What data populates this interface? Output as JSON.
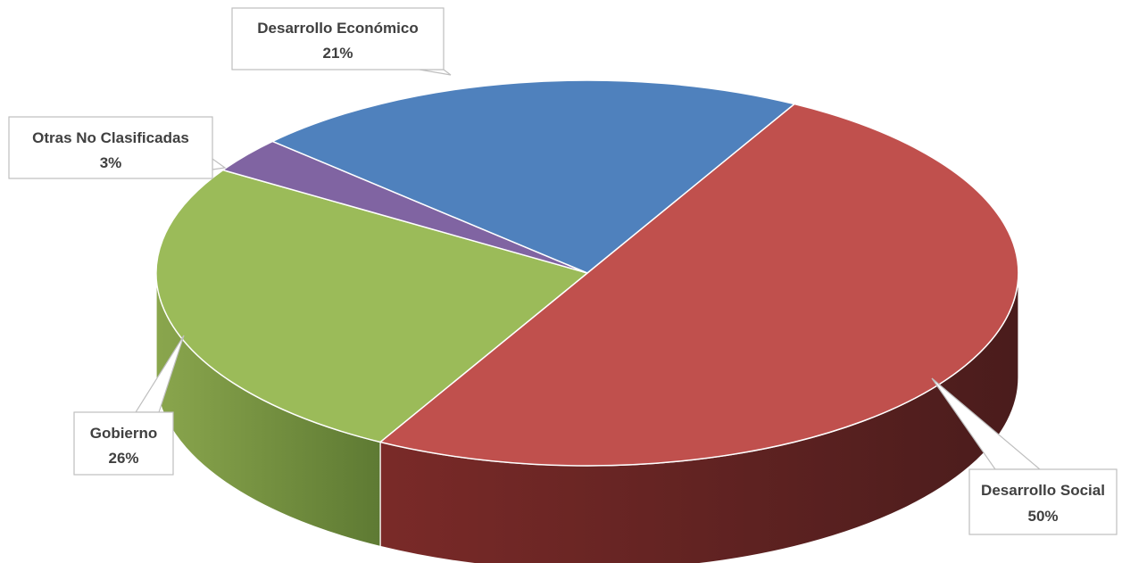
{
  "chart_data": {
    "type": "pie",
    "style": "3d",
    "unit": "%",
    "slices": [
      {
        "label": "Desarrollo Social",
        "value": 50,
        "percent_label": "50%",
        "color": "#c0504d",
        "side_color": "#6b2320"
      },
      {
        "label": "Gobierno",
        "value": 26,
        "percent_label": "26%",
        "color": "#9bbb59",
        "side_color": "#5f7a30"
      },
      {
        "label": "Otras No Clasificadas",
        "value": 3,
        "percent_label": "3%",
        "color": "#8064a2",
        "side_color": "#4b3a61"
      },
      {
        "label": "Desarrollo Económico",
        "value": 21,
        "percent_label": "21%",
        "color": "#4f81bd",
        "side_color": "#2f4f74"
      }
    ],
    "legend": "none",
    "data_labels": "outside with leader lines"
  }
}
